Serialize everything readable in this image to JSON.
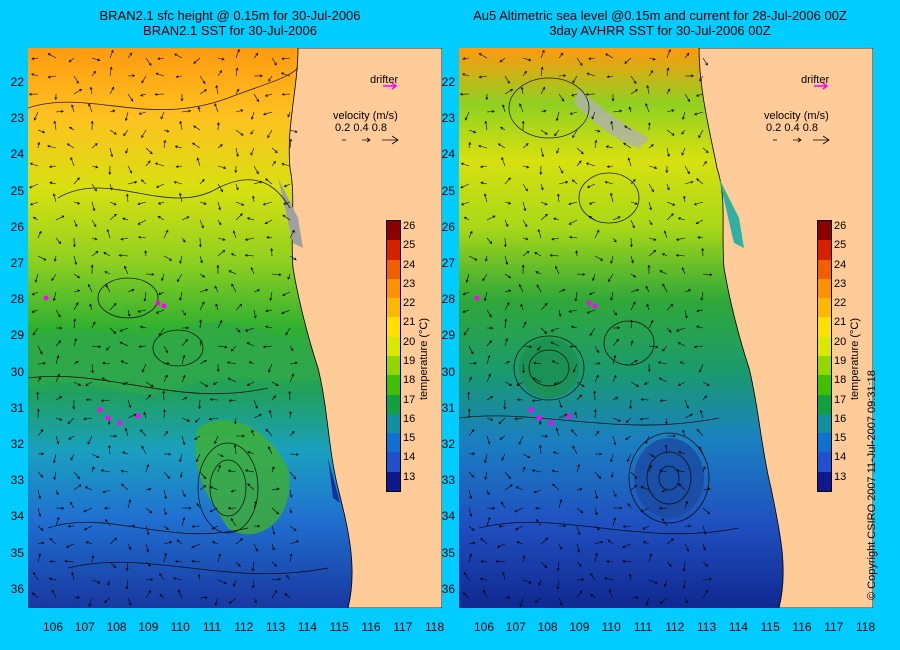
{
  "left_panel": {
    "title_line1": "BRAN2.1 sfc height @ 0.15m for 30-Jul-2006",
    "title_line2": "BRAN2.1 SST for 30-Jul-2006"
  },
  "right_panel": {
    "title_line1": "Au5 Altimetric sea level  @0.15m and current for 28-Jul-2006 00Z",
    "title_line2": "3day AVHRR SST for 30-Jul-2006 00Z"
  },
  "legend": {
    "drifter_label": "drifter",
    "velocity_label": "velocity (m/s)",
    "velocity_scale": [
      "0.2",
      "0.4",
      "0.8"
    ]
  },
  "colorbar": {
    "title": "temperature (°C)",
    "ticks": [
      "26",
      "25",
      "24",
      "23",
      "22",
      "21",
      "20",
      "19",
      "18",
      "17",
      "16",
      "15",
      "14",
      "13"
    ],
    "colors": [
      "#8b0000",
      "#d62000",
      "#f06000",
      "#ff9000",
      "#ffb800",
      "#ffe000",
      "#d8e800",
      "#90d800",
      "#40c000",
      "#10a040",
      "#1090a0",
      "#1070d0",
      "#2050d0",
      "#101890"
    ]
  },
  "axes": {
    "latitudes": [
      "22",
      "23",
      "24",
      "25",
      "26",
      "27",
      "28",
      "29",
      "30",
      "31",
      "32",
      "33",
      "34",
      "35",
      "36"
    ],
    "longitudes": [
      "106",
      "107",
      "108",
      "109",
      "110",
      "111",
      "112",
      "113",
      "114",
      "115",
      "116",
      "117",
      "118"
    ]
  },
  "copyright": "© Copyright CSIRO 2007   11-Jul-2007 09:31:18"
}
